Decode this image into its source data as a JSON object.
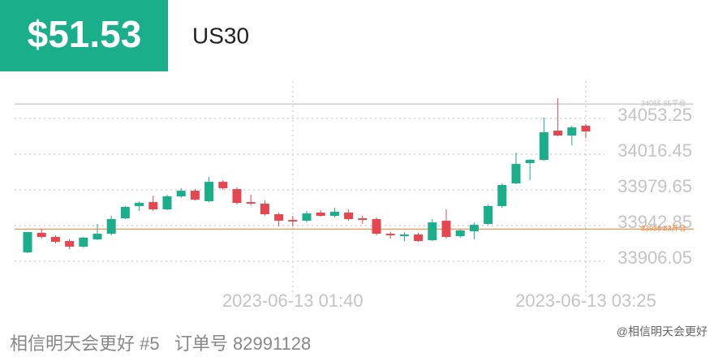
{
  "header": {
    "price": "$51.53",
    "symbol": "US30"
  },
  "chart_data": {
    "type": "candlestick",
    "categories": [
      null,
      null,
      null,
      null,
      null,
      null,
      null,
      null,
      null,
      null,
      null,
      null,
      null,
      null,
      null,
      null,
      null,
      null,
      null,
      "2023-06-13 01:40",
      null,
      null,
      null,
      null,
      null,
      null,
      null,
      null,
      null,
      null,
      null,
      null,
      null,
      null,
      null,
      null,
      null,
      null,
      null,
      null,
      "2023-06-13 03:25"
    ],
    "open": [
      33912.8,
      33932.9,
      33928.7,
      33924.5,
      33918.7,
      33926.2,
      33932.0,
      33947.9,
      33960.5,
      33964.6,
      33957.1,
      33970.5,
      33976.3,
      33965.5,
      33985.5,
      33978.0,
      33964.6,
      33963.0,
      33952.1,
      33946.2,
      33945.4,
      33953.8,
      33950.4,
      33953.8,
      33947.9,
      33947.1,
      33932.0,
      33929.5,
      33931.2,
      33925.3,
      33945.4,
      33929.5,
      33934.5,
      33942.1,
      33960.5,
      33983.9,
      34004.8,
      34008.1,
      34038.2,
      34033.2,
      34043.2
    ],
    "high": [
      33933.7,
      33937.1,
      33930.4,
      33926.2,
      33928.7,
      33942.1,
      33950.4,
      33960.5,
      33965.5,
      33971.3,
      33972.2,
      33978.9,
      33978.0,
      33990.6,
      33987.2,
      33979.7,
      33972.2,
      33966.3,
      33953.8,
      33950.4,
      33955.4,
      33956.3,
      33958.8,
      33957.1,
      33950.4,
      33948.8,
      33933.7,
      33933.7,
      33932.9,
      33947.1,
      33957.1,
      33937.1,
      33943.7,
      33962.1,
      33983.9,
      34015.6,
      34008.9,
      34051.6,
      34071.6,
      34043.2,
      34044.9
    ],
    "low": [
      33912.0,
      33927.0,
      33922.0,
      33916.2,
      33917.8,
      33925.3,
      33930.4,
      33947.1,
      33955.4,
      33955.4,
      33956.3,
      33968.8,
      33966.3,
      33964.6,
      33977.2,
      33962.1,
      33961.3,
      33950.4,
      33939.6,
      33939.6,
      33943.7,
      33949.6,
      33948.8,
      33945.4,
      33942.1,
      33930.4,
      33927.0,
      33924.5,
      33923.7,
      33924.5,
      33927.0,
      33927.9,
      33926.2,
      33941.2,
      33958.8,
      33983.0,
      33987.2,
      34007.3,
      34032.4,
      34023.2,
      34030.7
    ],
    "close": [
      33933.7,
      33928.7,
      33923.7,
      33918.7,
      33927.9,
      33932.0,
      33947.1,
      33959.6,
      33963.8,
      33957.1,
      33970.5,
      33976.3,
      33967.1,
      33985.5,
      33978.9,
      33963.8,
      33963.0,
      33952.1,
      33945.4,
      33944.6,
      33952.9,
      33950.4,
      33954.6,
      33947.1,
      33946.2,
      33932.0,
      33930.4,
      33931.2,
      33924.5,
      33943.7,
      33928.7,
      33935.4,
      33941.2,
      33960.5,
      33982.2,
      34003.9,
      34008.1,
      34036.5,
      34033.2,
      34041.5,
      34037.4
    ],
    "up_color": "#1bae8a",
    "down_color": "#e4474f",
    "ylim": [
      33888.6,
      34089.2
    ],
    "yticks": [
      33906.05,
      33942.85,
      33979.65,
      34016.45,
      34053.25
    ],
    "grid": true,
    "reference_lines": [
      {
        "value": 34065.65,
        "label": "34065.65平仓",
        "color": "#bdbdbd"
      },
      {
        "value": 33936.83,
        "label": "33936.83开仓",
        "color": "#f0883e"
      }
    ]
  },
  "footer": {
    "text": "相信明天会更好 #5   订单号 82991128",
    "watermark": "@相信明天会更好"
  }
}
